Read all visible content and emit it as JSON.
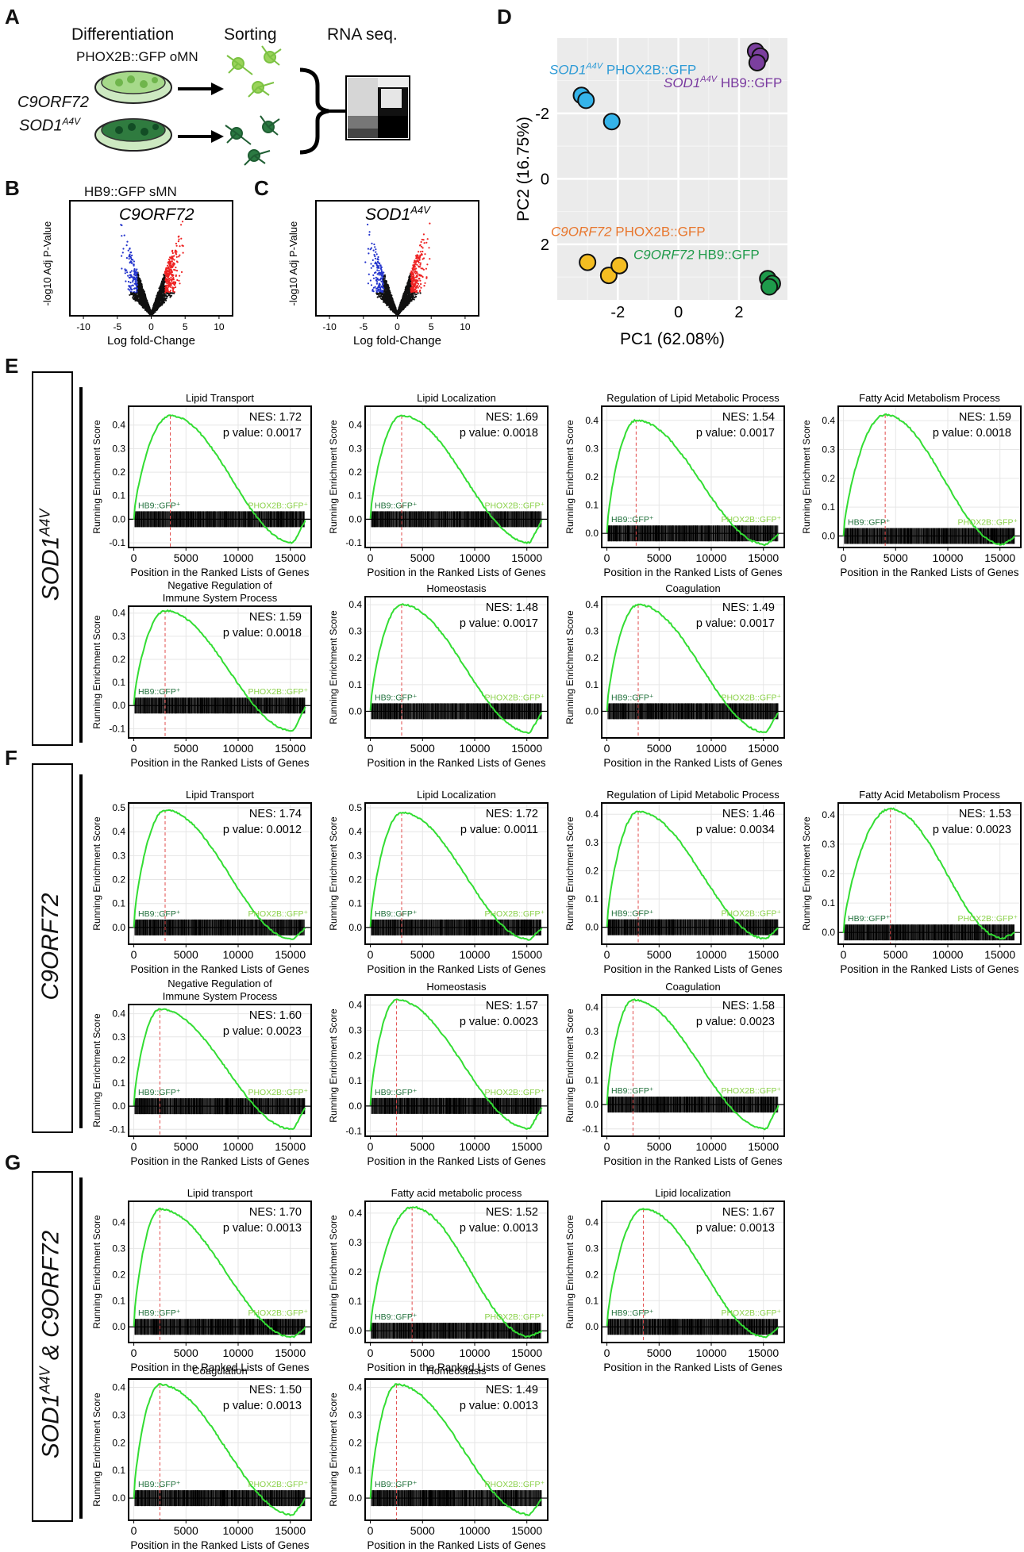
{
  "colors": {
    "gsea_line": "#33dd33",
    "hb9_text": "#1f6f3a",
    "phox_text": "#8bd14a",
    "dashed": "#e24a4a",
    "volcano_red": "#ee2222",
    "volcano_blue": "#2233cc",
    "sod1_phox": "#2e9bd6",
    "sod1_hb9": "#7a3aa0",
    "c9_phox": "#e8772e",
    "c9_hb9": "#1f9a4a",
    "dot_yellow": "#f4bd21",
    "dot_cyan": "#35b4ea",
    "dot_purple": "#7b3f9e",
    "dot_green": "#1e9a4b"
  },
  "panelA": {
    "letter": "A",
    "differentiation": "Differentiation",
    "sorting": "Sorting",
    "rnaseq": "RNA seq.",
    "phox_label": "PHOX2B::GFP oMN",
    "hb9_label": "HB9::GFP sMN",
    "gene1": "C9ORF72",
    "gene2_main": "SOD1",
    "gene2_sup": "A4V"
  },
  "panelB": {
    "letter": "B",
    "title": "C9ORF72",
    "ylabel": "-log10 Adj P-Value",
    "xlabel": "Log fold-Change",
    "xticks": [
      "-10",
      "-5",
      "0",
      "5",
      "10"
    ]
  },
  "panelC": {
    "letter": "C",
    "title_main": "SOD1",
    "title_sup": "A4V",
    "ylabel": "-log10 Adj P-Value",
    "xlabel": "Log fold-Change",
    "xticks": [
      "-10",
      "-5",
      "0",
      "5",
      "10"
    ]
  },
  "panelD": {
    "letter": "D",
    "xlabel": "PC1 (62.08%)",
    "ylabel": "PC2 (16.75%)",
    "xticks": [
      "-2",
      "0",
      "2"
    ],
    "yticks": [
      "-2",
      "0",
      "2"
    ],
    "label_sod1_phox_gene": "SOD1",
    "label_sod1_phox_sup": "A4V",
    "label_sod1_phox_rest": " PHOX2B::GFP",
    "label_sod1_hb9_gene": "SOD1",
    "label_sod1_hb9_sup": "A4V",
    "label_sod1_hb9_rest": " HB9::GFP",
    "label_c9_phox_gene": "C9ORF72",
    "label_c9_phox_rest": " PHOX2B::GFP",
    "label_c9_hb9_gene": "C9ORF72",
    "label_c9_hb9_rest": " HB9::GFP",
    "points": {
      "cyan": [
        [
          -3.2,
          -2.55
        ],
        [
          -3.05,
          -2.4
        ],
        [
          -2.2,
          -1.75
        ]
      ],
      "purple": [
        [
          2.55,
          -3.9
        ],
        [
          2.7,
          -3.75
        ],
        [
          2.6,
          -3.55
        ]
      ],
      "yellow": [
        [
          -3.0,
          2.55
        ],
        [
          -2.3,
          2.95
        ],
        [
          -1.95,
          2.65
        ]
      ],
      "green": [
        [
          2.95,
          3.05
        ],
        [
          3.1,
          3.2
        ],
        [
          3.0,
          3.3
        ]
      ]
    }
  },
  "panelE": {
    "letter": "E",
    "side_main": "SOD1",
    "side_sup": "A4V"
  },
  "panelF": {
    "letter": "F",
    "side": "C9ORF72"
  },
  "panelG": {
    "letter": "G",
    "side_main": "SOD1",
    "side_sup": "A4V",
    "side_rest": " & C9ORF72"
  },
  "gsea_common": {
    "ylabel": "Running Enrichment Score",
    "xlabel": "Position in the Ranked Lists of Genes",
    "hb9": "HB9::GFP⁺",
    "phox": "PHOX2B::GFP⁺",
    "xticks": [
      "0",
      "5000",
      "10000",
      "15000"
    ]
  },
  "chart_data": [
    {
      "type": "line",
      "id": "E1",
      "title": "Lipid Transport",
      "nes": "NES: 1.72",
      "pval": "p value: 0.0017",
      "ylim": [
        -0.12,
        0.48
      ],
      "yticks": [
        "0.4",
        "0.3",
        "0.2",
        "0.1",
        "0.0",
        "-0.1"
      ],
      "peak_x": 3500,
      "peak_y": 0.44,
      "min_y": -0.1
    },
    {
      "type": "line",
      "id": "E2",
      "title": "Lipid Localization",
      "nes": "NES: 1.69",
      "pval": "p value: 0.0018",
      "ylim": [
        -0.12,
        0.48
      ],
      "yticks": [
        "0.4",
        "0.3",
        "0.2",
        "0.1",
        "0.0",
        "-0.1"
      ],
      "peak_x": 3000,
      "peak_y": 0.44,
      "min_y": -0.1
    },
    {
      "type": "line",
      "id": "E3",
      "title": "Regulation of Lipid Metabolic Process",
      "nes": "NES: 1.54",
      "pval": "p value: 0.0017",
      "ylim": [
        -0.05,
        0.45
      ],
      "yticks": [
        "0.4",
        "0.3",
        "0.2",
        "0.1",
        "0.0"
      ],
      "peak_x": 2800,
      "peak_y": 0.4,
      "min_y": -0.04
    },
    {
      "type": "line",
      "id": "E4",
      "title": "Fatty Acid Metabolism Process",
      "nes": "NES: 1.59",
      "pval": "p value: 0.0018",
      "ylim": [
        -0.04,
        0.45
      ],
      "yticks": [
        "0.4",
        "0.3",
        "0.2",
        "0.1",
        "0.0"
      ],
      "peak_x": 4000,
      "peak_y": 0.42,
      "min_y": -0.03
    },
    {
      "type": "line",
      "id": "E5",
      "title": "Negative Regulation of Immune System Process",
      "nes": "NES: 1.59",
      "pval": "p value: 0.0018",
      "ylim": [
        -0.14,
        0.43
      ],
      "yticks": [
        "0.4",
        "0.3",
        "0.2",
        "0.1",
        "0.0",
        "-0.1"
      ],
      "peak_x": 3000,
      "peak_y": 0.41,
      "min_y": -0.11
    },
    {
      "type": "line",
      "id": "E6",
      "title": "Homeostasis",
      "nes": "NES: 1.48",
      "pval": "p value: 0.0017",
      "ylim": [
        -0.1,
        0.43
      ],
      "yticks": [
        "0.4",
        "0.3",
        "0.2",
        "0.1",
        "0.0"
      ],
      "peak_x": 3000,
      "peak_y": 0.4,
      "min_y": -0.08
    },
    {
      "type": "line",
      "id": "E7",
      "title": "Coagulation",
      "nes": "NES: 1.49",
      "pval": "p value: 0.0017",
      "ylim": [
        -0.1,
        0.43
      ],
      "yticks": [
        "0.4",
        "0.3",
        "0.2",
        "0.1",
        "0.0"
      ],
      "peak_x": 3000,
      "peak_y": 0.4,
      "min_y": -0.08
    },
    {
      "type": "line",
      "id": "F1",
      "title": "Lipid Transport",
      "nes": "NES: 1.74",
      "pval": "p value: 0.0012",
      "ylim": [
        -0.07,
        0.52
      ],
      "yticks": [
        "0.5",
        "0.4",
        "0.3",
        "0.2",
        "0.1",
        "0.0"
      ],
      "peak_x": 3000,
      "peak_y": 0.49,
      "min_y": -0.05
    },
    {
      "type": "line",
      "id": "F2",
      "title": "Lipid Localization",
      "nes": "NES: 1.72",
      "pval": "p value: 0.0011",
      "ylim": [
        -0.07,
        0.52
      ],
      "yticks": [
        "0.5",
        "0.4",
        "0.3",
        "0.2",
        "0.1",
        "0.0"
      ],
      "peak_x": 3000,
      "peak_y": 0.48,
      "min_y": -0.05
    },
    {
      "type": "line",
      "id": "F3",
      "title": "Regulation of Lipid Metabolic Process",
      "nes": "NES: 1.46",
      "pval": "p value: 0.0034",
      "ylim": [
        -0.06,
        0.44
      ],
      "yticks": [
        "0.4",
        "0.3",
        "0.2",
        "0.1",
        "0.0"
      ],
      "peak_x": 3000,
      "peak_y": 0.41,
      "min_y": -0.04
    },
    {
      "type": "line",
      "id": "F4",
      "title": "Fatty Acid Metabolism Process",
      "nes": "NES: 1.53",
      "pval": "p value: 0.0023",
      "ylim": [
        -0.04,
        0.44
      ],
      "yticks": [
        "0.4",
        "0.3",
        "0.2",
        "0.1",
        "0.0"
      ],
      "peak_x": 4500,
      "peak_y": 0.42,
      "min_y": -0.02
    },
    {
      "type": "line",
      "id": "F5",
      "title": "Negative Regulation of Immune System Process",
      "nes": "NES: 1.60",
      "pval": "p value: 0.0023",
      "ylim": [
        -0.13,
        0.44
      ],
      "yticks": [
        "0.4",
        "0.3",
        "0.2",
        "0.1",
        "0.0",
        "-0.1"
      ],
      "peak_x": 2500,
      "peak_y": 0.42,
      "min_y": -0.1
    },
    {
      "type": "line",
      "id": "F6",
      "title": "Homeostasis",
      "nes": "NES: 1.57",
      "pval": "p value: 0.0023",
      "ylim": [
        -0.12,
        0.44
      ],
      "yticks": [
        "0.4",
        "0.3",
        "0.2",
        "0.1",
        "0.0",
        "-0.1"
      ],
      "peak_x": 2500,
      "peak_y": 0.42,
      "min_y": -0.09
    },
    {
      "type": "line",
      "id": "F7",
      "title": "Coagulation",
      "nes": "NES: 1.58",
      "pval": "p value: 0.0023",
      "ylim": [
        -0.13,
        0.45
      ],
      "yticks": [
        "0.4",
        "0.3",
        "0.2",
        "0.1",
        "0.0",
        "-0.1"
      ],
      "peak_x": 2500,
      "peak_y": 0.43,
      "min_y": -0.1
    },
    {
      "type": "line",
      "id": "G1",
      "title": "Lipid transport",
      "nes": "NES: 1.70",
      "pval": "p value: 0.0013",
      "ylim": [
        -0.06,
        0.48
      ],
      "yticks": [
        "0.4",
        "0.3",
        "0.2",
        "0.1",
        "0.0"
      ],
      "peak_x": 2500,
      "peak_y": 0.45,
      "min_y": -0.04
    },
    {
      "type": "line",
      "id": "G2",
      "title": "Fatty acid metabolic process",
      "nes": "NES: 1.52",
      "pval": "p value: 0.0013",
      "ylim": [
        -0.04,
        0.44
      ],
      "yticks": [
        "0.4",
        "0.3",
        "0.2",
        "0.1",
        "0.0"
      ],
      "peak_x": 4000,
      "peak_y": 0.42,
      "min_y": -0.02
    },
    {
      "type": "line",
      "id": "G3",
      "title": "Lipid localization",
      "nes": "NES: 1.67",
      "pval": "p value: 0.0013",
      "ylim": [
        -0.06,
        0.48
      ],
      "yticks": [
        "0.4",
        "0.3",
        "0.2",
        "0.1",
        "0.0"
      ],
      "peak_x": 3500,
      "peak_y": 0.45,
      "min_y": -0.04
    },
    {
      "type": "line",
      "id": "G4",
      "title": "Coagulation",
      "nes": "NES: 1.50",
      "pval": "p value: 0.0013",
      "ylim": [
        -0.08,
        0.43
      ],
      "yticks": [
        "0.4",
        "0.3",
        "0.2",
        "0.1",
        "0.0"
      ],
      "peak_x": 2500,
      "peak_y": 0.41,
      "min_y": -0.06
    },
    {
      "type": "line",
      "id": "G5",
      "title": "Homeostasis",
      "nes": "NES: 1.49",
      "pval": "p value: 0.0013",
      "ylim": [
        -0.08,
        0.43
      ],
      "yticks": [
        "0.4",
        "0.3",
        "0.2",
        "0.1",
        "0.0"
      ],
      "peak_x": 2500,
      "peak_y": 0.41,
      "min_y": -0.06
    }
  ]
}
